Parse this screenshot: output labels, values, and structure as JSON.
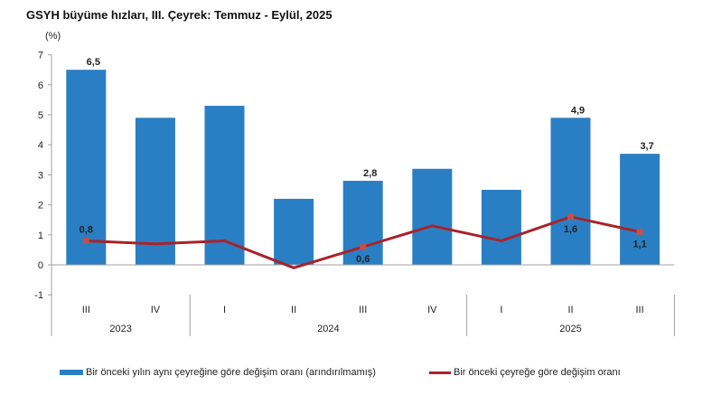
{
  "title": "GSYH büyüme hızları, III. Çeyrek: Temmuz - Eylül, 2025",
  "unit_label": "(%)",
  "colors": {
    "bar": "#2a7fc4",
    "line": "#a8232a",
    "axis": "#a0a0a0"
  },
  "legend": {
    "bar_label": "Bir önceki yılın aynı çeyreğine göre değişim oranı (arındırılmamış)",
    "line_label": "Bir önceki çeyreğe göre değişim oranı"
  },
  "chart_data": {
    "type": "bar",
    "title": "GSYH büyüme hızları, III. Çeyrek: Temmuz - Eylül, 2025",
    "ylabel": "(%)",
    "xlabel": "",
    "ylim": [
      -1,
      7
    ],
    "yticks": [
      -1,
      0,
      1,
      2,
      3,
      4,
      5,
      6,
      7
    ],
    "categories": [
      "III",
      "IV",
      "I",
      "II",
      "III",
      "IV",
      "I",
      "II",
      "III"
    ],
    "groups": [
      {
        "label": "2023",
        "span": 2
      },
      {
        "label": "2024",
        "span": 4
      },
      {
        "label": "2025",
        "span": 3
      }
    ],
    "series": [
      {
        "name": "Bir önceki yılın aynı çeyreğine göre değişim oranı (arındırılmamış)",
        "type": "bar",
        "values": [
          6.5,
          4.9,
          5.3,
          2.2,
          2.8,
          3.2,
          2.5,
          4.9,
          3.7
        ],
        "labels": [
          "6,5",
          "",
          "",
          "",
          "2,8",
          "",
          "",
          "4,9",
          "3,7"
        ]
      },
      {
        "name": "Bir önceki çeyreğe göre değişim oranı",
        "type": "line",
        "values": [
          0.8,
          0.7,
          0.8,
          -0.1,
          0.6,
          1.3,
          0.8,
          1.6,
          1.1
        ],
        "labels": [
          "0,8",
          "",
          "",
          "",
          "0,6",
          "",
          "",
          "1,6",
          "1,1"
        ]
      }
    ],
    "grid": false,
    "legend_position": "bottom"
  }
}
